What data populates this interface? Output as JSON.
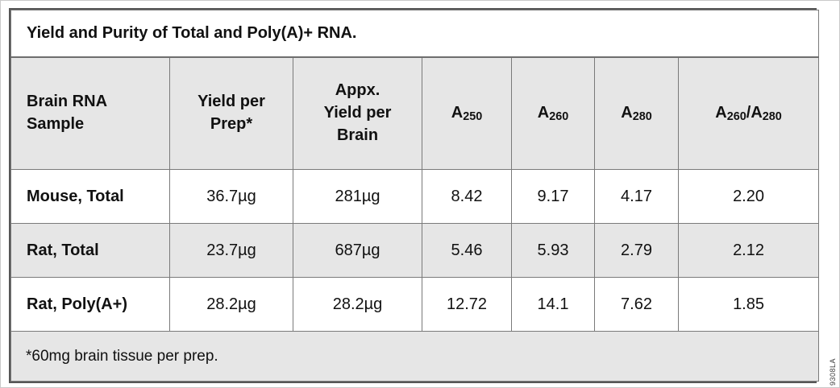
{
  "figure_number": "9308LA",
  "colors": {
    "shaded_bg": "#e6e6e6",
    "inner_border": "#7a7a7a",
    "outer_border": "#565656",
    "text": "#111111"
  },
  "table": {
    "title": "Yield and Purity of Total and Poly(A)+ RNA.",
    "columns": [
      {
        "id": "sample",
        "lines": [
          "Brain RNA",
          "Sample"
        ],
        "align": "left"
      },
      {
        "id": "yield-per-prep",
        "lines": [
          "Yield per",
          "Prep*"
        ],
        "align": "center"
      },
      {
        "id": "appx-yield-per-brain",
        "lines": [
          "Appx.",
          "Yield per",
          "Brain"
        ],
        "align": "center"
      },
      {
        "id": "a250",
        "rich": [
          {
            "text": "A"
          },
          {
            "sub": "250"
          }
        ],
        "align": "center"
      },
      {
        "id": "a260",
        "rich": [
          {
            "text": "A"
          },
          {
            "sub": "260"
          }
        ],
        "align": "center"
      },
      {
        "id": "a280",
        "rich": [
          {
            "text": "A"
          },
          {
            "sub": "280"
          }
        ],
        "align": "center"
      },
      {
        "id": "a260-a280-ratio",
        "rich": [
          {
            "text": "A"
          },
          {
            "sub": "260"
          },
          {
            "text": "/A"
          },
          {
            "sub": "280"
          }
        ],
        "align": "center"
      }
    ],
    "rows": [
      [
        "Mouse, Total",
        "36.7µg",
        "281µg",
        "8.42",
        "9.17",
        "4.17",
        "2.20"
      ],
      [
        "Rat, Total",
        "23.7µg",
        "687µg",
        "5.46",
        "5.93",
        "2.79",
        "2.12"
      ],
      [
        "Rat, Poly(A+)",
        "28.2µg",
        "28.2µg",
        "12.72",
        "14.1",
        "7.62",
        "1.85"
      ]
    ],
    "footnote": "*60mg brain tissue per prep."
  }
}
